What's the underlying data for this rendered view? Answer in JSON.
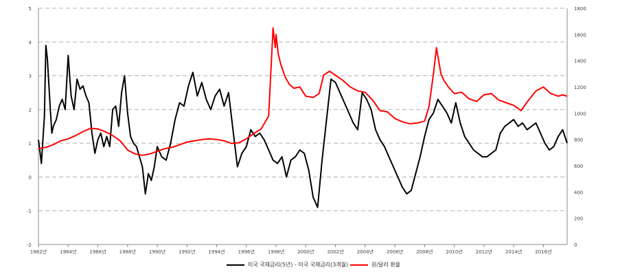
{
  "chart_data": {
    "type": "line",
    "title": "",
    "xlabel": "",
    "ylabel": "",
    "x_tick_labels": [
      "1982년",
      "1984년",
      "1986년",
      "1988년",
      "1990년",
      "1992년",
      "1994년",
      "1996년",
      "1998년",
      "2000년",
      "2002년",
      "2004년",
      "2006년",
      "2008년",
      "2010년",
      "2012년",
      "2014년",
      "2016년"
    ],
    "xlim": [
      1982.0,
      2017.6
    ],
    "y_left": {
      "lim": [
        -2,
        5
      ],
      "ticks": [
        -2,
        -1,
        0,
        1,
        2,
        3,
        4,
        5
      ]
    },
    "y_right": {
      "lim": [
        0,
        1800
      ],
      "ticks": [
        0,
        200,
        400,
        600,
        800,
        1000,
        1200,
        1400,
        1600,
        1800
      ]
    },
    "grid": "horizontal dashed",
    "legend_position": "bottom",
    "series": [
      {
        "name": "미국 국채금리(5년) - 미국 국채금리(3개월)",
        "axis": "left",
        "color": "#000000",
        "x": [
          1982.0,
          1982.2,
          1982.4,
          1982.5,
          1982.6,
          1982.8,
          1982.9,
          1983.0,
          1983.2,
          1983.4,
          1983.6,
          1983.8,
          1984.0,
          1984.2,
          1984.4,
          1984.6,
          1984.8,
          1985.0,
          1985.2,
          1985.4,
          1985.6,
          1985.8,
          1986.0,
          1986.2,
          1986.4,
          1986.6,
          1986.8,
          1987.0,
          1987.2,
          1987.4,
          1987.6,
          1987.8,
          1988.0,
          1988.2,
          1988.4,
          1988.6,
          1988.8,
          1989.0,
          1989.2,
          1989.4,
          1989.6,
          1989.8,
          1990.0,
          1990.3,
          1990.6,
          1990.9,
          1991.2,
          1991.5,
          1991.8,
          1992.1,
          1992.4,
          1992.7,
          1993.0,
          1993.3,
          1993.6,
          1993.9,
          1994.2,
          1994.5,
          1994.8,
          1995.1,
          1995.4,
          1995.7,
          1996.0,
          1996.3,
          1996.6,
          1996.9,
          1997.2,
          1997.5,
          1997.8,
          1998.1,
          1998.4,
          1998.7,
          1999.0,
          1999.3,
          1999.6,
          1999.9,
          2000.2,
          2000.5,
          2000.8,
          2001.1,
          2001.4,
          2001.7,
          2002.0,
          2002.3,
          2002.6,
          2002.9,
          2003.2,
          2003.5,
          2003.8,
          2004.1,
          2004.4,
          2004.7,
          2005.0,
          2005.3,
          2005.6,
          2005.9,
          2006.2,
          2006.5,
          2006.8,
          2007.1,
          2007.4,
          2007.7,
          2008.0,
          2008.3,
          2008.6,
          2008.9,
          2009.2,
          2009.5,
          2009.8,
          2010.1,
          2010.4,
          2010.7,
          2011.0,
          2011.3,
          2011.6,
          2011.9,
          2012.2,
          2012.5,
          2012.8,
          2013.1,
          2013.4,
          2013.7,
          2014.0,
          2014.3,
          2014.6,
          2014.9,
          2015.2,
          2015.5,
          2015.8,
          2016.1,
          2016.4,
          2016.7,
          2017.0,
          2017.3,
          2017.6
        ],
        "y": [
          1.1,
          0.4,
          1.8,
          3.9,
          3.5,
          2.0,
          1.3,
          1.5,
          1.7,
          2.1,
          2.3,
          2.0,
          3.6,
          2.4,
          2.0,
          2.9,
          2.6,
          2.7,
          2.4,
          2.2,
          1.3,
          0.7,
          1.1,
          1.3,
          0.9,
          1.2,
          0.9,
          2.0,
          2.1,
          1.5,
          2.5,
          3.0,
          1.9,
          1.2,
          1.0,
          0.9,
          0.6,
          0.3,
          -0.5,
          0.1,
          -0.1,
          0.3,
          0.9,
          0.6,
          0.5,
          1.0,
          1.7,
          2.2,
          2.1,
          2.7,
          3.1,
          2.4,
          2.8,
          2.3,
          2.0,
          2.4,
          2.6,
          2.1,
          2.5,
          1.4,
          0.3,
          0.7,
          0.9,
          1.4,
          1.2,
          1.3,
          1.1,
          0.8,
          0.5,
          0.4,
          0.6,
          0.0,
          0.5,
          0.6,
          0.8,
          0.7,
          0.2,
          -0.6,
          -0.9,
          0.5,
          1.7,
          2.9,
          2.8,
          2.5,
          2.2,
          1.9,
          1.6,
          1.4,
          2.5,
          2.3,
          2.0,
          1.4,
          1.1,
          0.9,
          0.6,
          0.3,
          0.0,
          -0.3,
          -0.5,
          -0.4,
          0.1,
          0.6,
          1.2,
          1.7,
          1.9,
          2.3,
          2.1,
          1.9,
          1.6,
          2.2,
          1.6,
          1.2,
          1.0,
          0.8,
          0.7,
          0.6,
          0.6,
          0.7,
          0.8,
          1.3,
          1.5,
          1.6,
          1.7,
          1.5,
          1.6,
          1.4,
          1.5,
          1.6,
          1.3,
          1.0,
          0.8,
          0.9,
          1.2,
          1.4,
          1.0
        ]
      },
      {
        "name": "원/달러 환율",
        "axis": "right",
        "color": "#ff0000",
        "x": [
          1982.0,
          1982.5,
          1983.0,
          1983.5,
          1984.0,
          1984.5,
          1985.0,
          1985.5,
          1986.0,
          1986.5,
          1987.0,
          1987.5,
          1988.0,
          1988.5,
          1989.0,
          1989.5,
          1990.0,
          1990.5,
          1991.0,
          1991.5,
          1992.0,
          1992.5,
          1993.0,
          1993.5,
          1994.0,
          1994.5,
          1995.0,
          1995.5,
          1996.0,
          1996.5,
          1997.0,
          1997.5,
          1997.8,
          1997.95,
          1998.0,
          1998.15,
          1998.3,
          1998.6,
          1998.9,
          1999.2,
          1999.6,
          2000.0,
          2000.5,
          2000.9,
          2001.2,
          2001.6,
          2002.0,
          2002.5,
          2003.0,
          2003.5,
          2004.0,
          2004.5,
          2005.0,
          2005.5,
          2006.0,
          2006.5,
          2007.0,
          2007.5,
          2008.0,
          2008.3,
          2008.6,
          2008.8,
          2008.95,
          2009.1,
          2009.3,
          2009.6,
          2010.0,
          2010.5,
          2011.0,
          2011.5,
          2012.0,
          2012.5,
          2013.0,
          2013.5,
          2014.0,
          2014.5,
          2015.0,
          2015.5,
          2016.0,
          2016.5,
          2017.0,
          2017.3,
          2017.6
        ],
        "y": [
          730,
          740,
          760,
          790,
          805,
          830,
          860,
          885,
          880,
          860,
          830,
          790,
          720,
          690,
          680,
          690,
          710,
          730,
          740,
          760,
          780,
          790,
          800,
          805,
          800,
          790,
          770,
          775,
          805,
          845,
          880,
          980,
          1650,
          1500,
          1600,
          1450,
          1380,
          1280,
          1220,
          1190,
          1200,
          1130,
          1120,
          1150,
          1290,
          1320,
          1290,
          1250,
          1200,
          1170,
          1160,
          1100,
          1020,
          1010,
          960,
          935,
          920,
          925,
          940,
          1050,
          1300,
          1500,
          1400,
          1300,
          1250,
          1200,
          1150,
          1160,
          1110,
          1090,
          1140,
          1150,
          1100,
          1080,
          1060,
          1020,
          1100,
          1170,
          1200,
          1150,
          1130,
          1140,
          1130
        ]
      }
    ]
  }
}
